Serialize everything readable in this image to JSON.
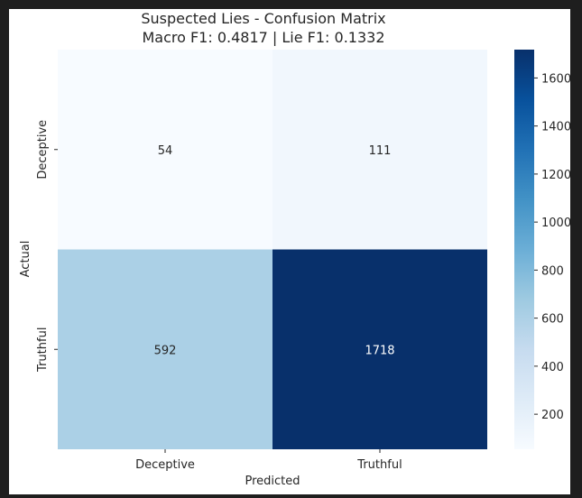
{
  "chart_data": {
    "type": "heatmap",
    "title": "Suspected Lies - Confusion Matrix",
    "subtitle": "Macro F1: 0.4817 | Lie F1: 0.1332",
    "xlabel": "Predicted",
    "ylabel": "Actual",
    "x_categories": [
      "Deceptive",
      "Truthful"
    ],
    "y_categories": [
      "Deceptive",
      "Truthful"
    ],
    "values": [
      [
        54,
        111
      ],
      [
        592,
        1718
      ]
    ],
    "colormap": "Blues",
    "color_range": [
      54,
      1718
    ],
    "colorbar_ticks": [
      200,
      400,
      600,
      800,
      1000,
      1200,
      1400,
      1600
    ],
    "cell_colors": [
      [
        "#f7fbff",
        "#f1f7fd"
      ],
      [
        "#abd0e6",
        "#08306b"
      ]
    ],
    "colorbar_gradient": [
      "#f7fbff",
      "#deebf7",
      "#c6dbef",
      "#9ecae1",
      "#6baed6",
      "#4292c6",
      "#2171b5",
      "#08519c",
      "#08306b"
    ]
  }
}
